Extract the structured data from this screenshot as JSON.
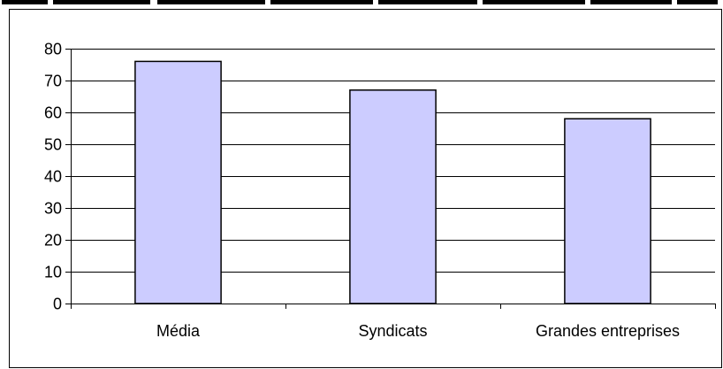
{
  "chart_data": {
    "type": "bar",
    "categories": [
      "Média",
      "Syndicats",
      "Grandes entreprises"
    ],
    "values": [
      76,
      67,
      58
    ],
    "title": "",
    "xlabel": "",
    "ylabel": "",
    "ylim": [
      0,
      80
    ],
    "yticks": [
      0,
      10,
      20,
      30,
      40,
      50,
      60,
      70,
      80
    ],
    "grid": true,
    "legend": "none",
    "bar_color": "#ccccff",
    "bar_edge_color": "#000000",
    "grid_color": "#000000",
    "background": "#ffffff"
  }
}
